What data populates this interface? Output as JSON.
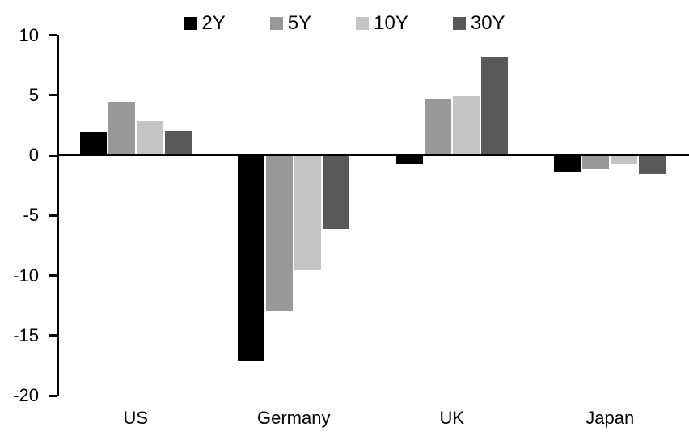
{
  "chart": {
    "background_color": "#ffffff",
    "axis_color": "#000000",
    "text_color": "#000000"
  },
  "chart_data": {
    "type": "bar",
    "title": "",
    "categories": [
      "US",
      "Germany",
      "UK",
      "Japan"
    ],
    "series": [
      {
        "name": "2Y",
        "color": "#000000",
        "values": [
          2.0,
          -17.2,
          -0.8,
          -1.5
        ]
      },
      {
        "name": "5Y",
        "color": "#989898",
        "values": [
          4.5,
          -13.0,
          4.7,
          -1.2
        ]
      },
      {
        "name": "10Y",
        "color": "#c4c4c4",
        "values": [
          2.9,
          -9.6,
          5.0,
          -0.8
        ]
      },
      {
        "name": "30Y",
        "color": "#595959",
        "values": [
          2.1,
          -6.2,
          8.3,
          -1.6
        ]
      }
    ],
    "xlabel": "",
    "ylabel": "",
    "ylim": [
      -20,
      10
    ],
    "yticks": [
      10,
      5,
      0,
      -5,
      -10,
      -15,
      -20
    ],
    "grid": false,
    "legend_position": "top"
  }
}
